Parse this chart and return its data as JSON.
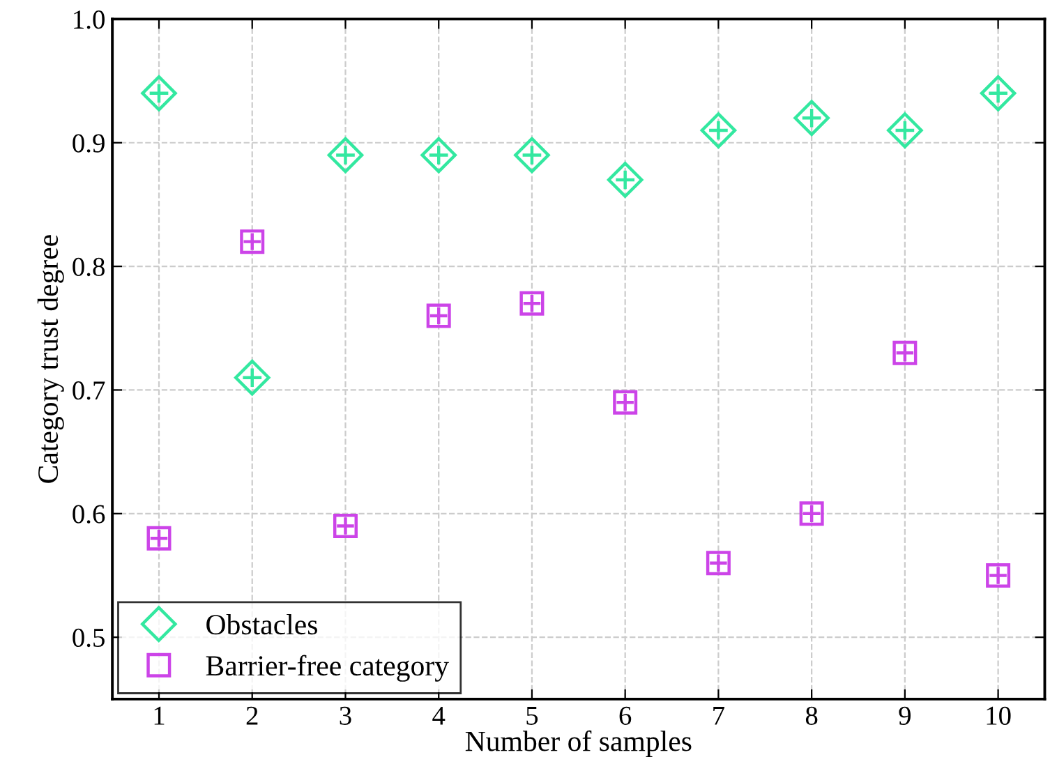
{
  "chart_data": {
    "type": "scatter",
    "xlabel": "Number of samples",
    "ylabel": "Category trust degree",
    "x": [
      1,
      2,
      3,
      4,
      5,
      6,
      7,
      8,
      9,
      10
    ],
    "series": [
      {
        "name": "Obstacles",
        "color": "#33e8a0",
        "marker": "diamond",
        "values": [
          0.94,
          0.71,
          0.89,
          0.89,
          0.89,
          0.87,
          0.91,
          0.92,
          0.91,
          0.94
        ]
      },
      {
        "name": "Barrier-free category",
        "color": "#cc44e8",
        "marker": "square",
        "values": [
          0.58,
          0.82,
          0.59,
          0.76,
          0.77,
          0.69,
          0.56,
          0.6,
          0.73,
          0.55
        ]
      }
    ],
    "xlim": [
      0.5,
      10.5
    ],
    "xticks": [
      1,
      2,
      3,
      4,
      5,
      6,
      7,
      8,
      9,
      10
    ],
    "ylim": [
      0.45,
      1.0
    ],
    "yticks": [
      0.5,
      0.6,
      0.7,
      0.8,
      0.9,
      {
        "value": 1,
        "label": "1.0"
      }
    ],
    "grid": true,
    "legend": "bottom left",
    "line_style": "none"
  }
}
